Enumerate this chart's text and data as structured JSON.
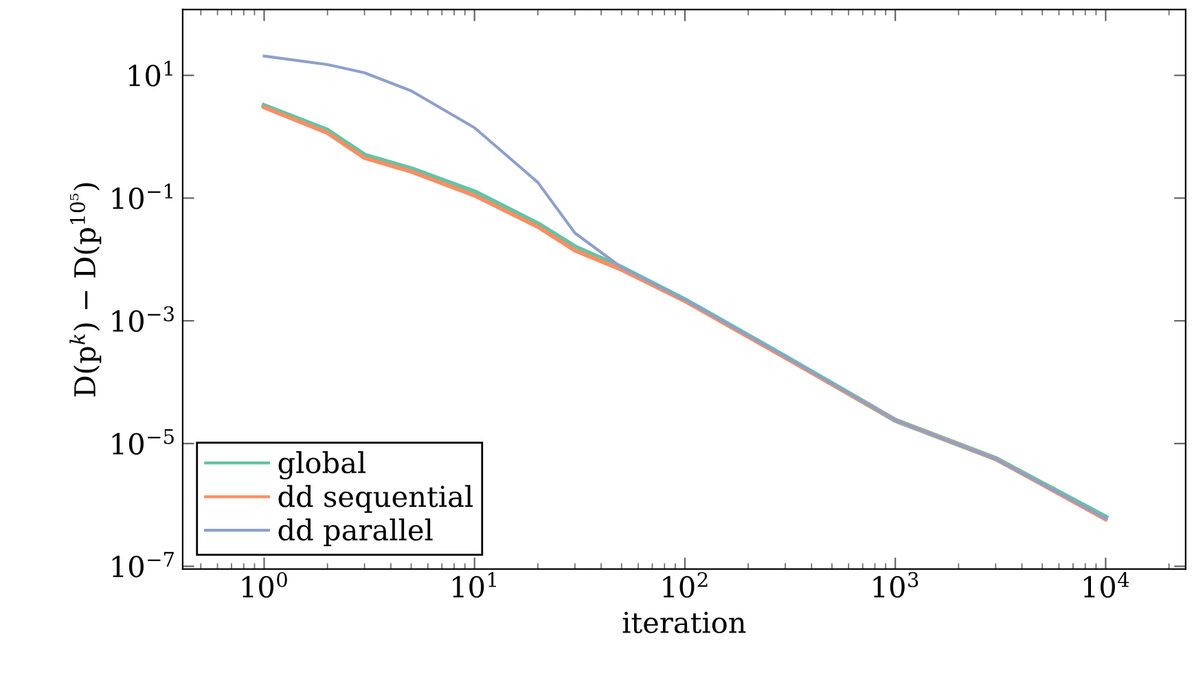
{
  "chart_data": {
    "type": "line",
    "xlabel": "iteration",
    "ylabel": "D(p$^{k}$) − D(p$^{10⁵}$)",
    "x": [
      1,
      2,
      3,
      5,
      10,
      20,
      30,
      50,
      100,
      300,
      1000,
      3000,
      10000
    ],
    "series": [
      {
        "name": "global",
        "color": "#66c2a5",
        "values": [
          3.2,
          1.27,
          0.5,
          0.3,
          0.126,
          0.038,
          0.016,
          0.0074,
          0.0022,
          0.00026,
          2.4e-05,
          5.7e-06,
          6.3e-07
        ]
      },
      {
        "name": "dd sequential",
        "color": "#fc8d62",
        "values": [
          3.0,
          1.15,
          0.45,
          0.27,
          0.11,
          0.034,
          0.014,
          0.0068,
          0.0021,
          0.00025,
          2.4e-05,
          5.6e-06,
          5.8e-07
        ]
      },
      {
        "name": "dd parallel",
        "color": "#8da0cb",
        "values": [
          20.6,
          15,
          11,
          5.6,
          1.4,
          0.18,
          0.027,
          0.0074,
          0.0022,
          0.00026,
          2.4e-05,
          5.6e-06,
          6e-07
        ]
      }
    ],
    "log": "xy",
    "xlim": [
      0.41,
      24000
    ],
    "ylim": [
      9e-08,
      118
    ],
    "xticks": [
      {
        "value": 1,
        "label": "10$^{0}$"
      },
      {
        "value": 10,
        "label": "10$^{1}$"
      },
      {
        "value": 100,
        "label": "10$^{2}$"
      },
      {
        "value": 1000,
        "label": "10$^{3}$"
      },
      {
        "value": 10000,
        "label": "10$^{4}$"
      }
    ],
    "yticks": [
      {
        "value": 1e-07,
        "label": "10$^{−7}$"
      },
      {
        "value": 1e-05,
        "label": "10$^{−5}$"
      },
      {
        "value": 0.001,
        "label": "10$^{−3}$"
      },
      {
        "value": 0.1,
        "label": "10$^{−1}$"
      },
      {
        "value": 10,
        "label": "10$^{1}$"
      }
    ],
    "grid": false,
    "legend": "bottom left",
    "marker": "none",
    "line_style": "solid"
  }
}
